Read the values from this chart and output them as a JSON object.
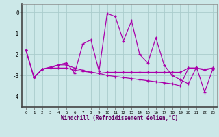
{
  "x": [
    0,
    1,
    2,
    3,
    4,
    5,
    6,
    7,
    8,
    9,
    10,
    11,
    12,
    13,
    14,
    15,
    16,
    17,
    18,
    19,
    20,
    21,
    22,
    23
  ],
  "line1": [
    -1.8,
    -3.1,
    -2.7,
    -2.6,
    -2.5,
    -2.4,
    -2.9,
    -1.5,
    -1.3,
    -2.8,
    -0.05,
    -0.2,
    -1.35,
    -0.4,
    -2.0,
    -2.4,
    -1.2,
    -2.5,
    -3.0,
    -3.2,
    -3.4,
    -2.6,
    -3.8,
    -2.7
  ],
  "line2": [
    -1.8,
    -3.1,
    -2.7,
    -2.65,
    -2.65,
    -2.65,
    -2.75,
    -2.8,
    -2.85,
    -2.9,
    -2.85,
    -2.85,
    -2.85,
    -2.85,
    -2.85,
    -2.85,
    -2.85,
    -2.85,
    -2.85,
    -2.85,
    -2.65,
    -2.65,
    -2.7,
    -2.65
  ],
  "line3": [
    -1.8,
    -3.1,
    -2.7,
    -2.65,
    -2.5,
    -2.5,
    -2.65,
    -2.75,
    -2.85,
    -2.9,
    -3.0,
    -3.05,
    -3.1,
    -3.15,
    -3.2,
    -3.25,
    -3.3,
    -3.35,
    -3.4,
    -3.5,
    -2.65,
    -2.65,
    -2.75,
    -2.65
  ],
  "bg_color": "#cce8e8",
  "line_color": "#aa00aa",
  "grid_color": "#aacccc",
  "xlabel": "Windchill (Refroidissement éolien,°C)",
  "ylim": [
    -4.5,
    0.4
  ],
  "xlim": [
    -0.5,
    23.5
  ],
  "yticks": [
    0,
    -1,
    -2,
    -3,
    -4
  ],
  "xticks": [
    0,
    1,
    2,
    3,
    4,
    5,
    6,
    7,
    8,
    9,
    10,
    11,
    12,
    13,
    14,
    15,
    16,
    17,
    18,
    19,
    20,
    21,
    22,
    23
  ]
}
